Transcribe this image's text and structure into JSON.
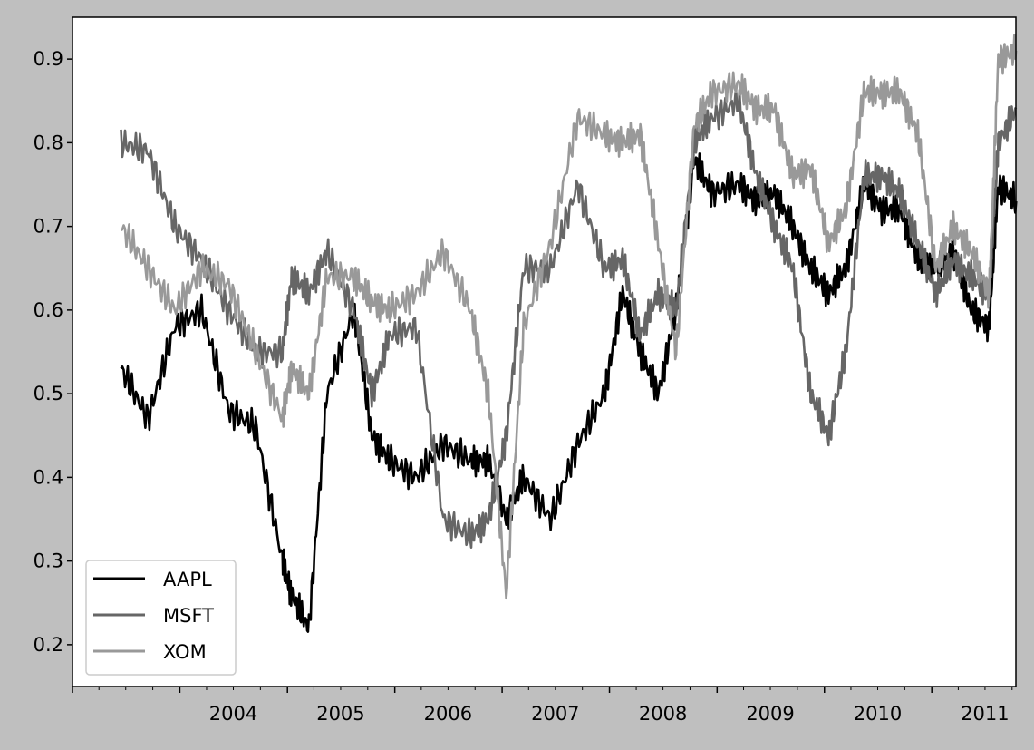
{
  "figure": {
    "background": "#bfbfbf",
    "plot_background": "#ffffff"
  },
  "chart_data": {
    "type": "line",
    "title": "",
    "xlabel": "",
    "ylabel": "",
    "x_tick_labels": [
      "2004",
      "2005",
      "2006",
      "2007",
      "2008",
      "2009",
      "2010",
      "2011"
    ],
    "xlim": [
      "2003-01-01",
      "2011-10-14"
    ],
    "ylim": [
      0.15,
      0.95
    ],
    "y_ticks": [
      0.2,
      0.3,
      0.4,
      0.5,
      0.6,
      0.7,
      0.8,
      0.9
    ],
    "y_tick_labels": [
      "0.2",
      "0.3",
      "0.4",
      "0.5",
      "0.6",
      "0.7",
      "0.8",
      "0.9"
    ],
    "grid": false,
    "legend_position": "lower-left",
    "x": [
      "2003-06",
      "2003-09",
      "2003-12",
      "2004-03",
      "2004-06",
      "2004-09",
      "2004-12",
      "2005-01",
      "2005-03",
      "2005-05",
      "2005-08",
      "2005-10",
      "2005-12",
      "2006-03",
      "2006-06",
      "2006-09",
      "2006-11",
      "2007-01",
      "2007-03",
      "2007-06",
      "2007-09",
      "2007-12",
      "2008-02",
      "2008-04",
      "2008-06",
      "2008-08",
      "2008-10",
      "2008-12",
      "2009-03",
      "2009-05",
      "2009-07",
      "2009-09",
      "2009-11",
      "2010-01",
      "2010-03",
      "2010-05",
      "2010-07",
      "2010-09",
      "2010-11",
      "2011-01",
      "2011-03",
      "2011-05",
      "2011-07",
      "2011-08",
      "2011-10"
    ],
    "series": [
      {
        "name": "AAPL",
        "color": "#000000",
        "values": [
          0.53,
          0.47,
          0.58,
          0.6,
          0.48,
          0.46,
          0.3,
          0.26,
          0.22,
          0.5,
          0.6,
          0.45,
          0.42,
          0.4,
          0.44,
          0.42,
          0.42,
          0.35,
          0.4,
          0.35,
          0.44,
          0.5,
          0.62,
          0.55,
          0.5,
          0.6,
          0.78,
          0.74,
          0.75,
          0.73,
          0.74,
          0.7,
          0.65,
          0.62,
          0.65,
          0.75,
          0.72,
          0.72,
          0.66,
          0.65,
          0.67,
          0.6,
          0.58,
          0.75,
          0.73
        ]
      },
      {
        "name": "MSFT",
        "color": "#666666",
        "values": [
          0.8,
          0.79,
          0.7,
          0.66,
          0.6,
          0.55,
          0.55,
          0.64,
          0.62,
          0.67,
          0.6,
          0.5,
          0.57,
          0.58,
          0.35,
          0.33,
          0.35,
          0.45,
          0.65,
          0.65,
          0.75,
          0.65,
          0.66,
          0.57,
          0.62,
          0.6,
          0.8,
          0.83,
          0.85,
          0.76,
          0.7,
          0.65,
          0.5,
          0.45,
          0.55,
          0.76,
          0.76,
          0.74,
          0.68,
          0.62,
          0.66,
          0.64,
          0.62,
          0.8,
          0.84
        ]
      },
      {
        "name": "XOM",
        "color": "#999999",
        "values": [
          0.7,
          0.65,
          0.6,
          0.65,
          0.63,
          0.55,
          0.47,
          0.53,
          0.5,
          0.64,
          0.64,
          0.61,
          0.6,
          0.62,
          0.67,
          0.6,
          0.5,
          0.26,
          0.58,
          0.68,
          0.83,
          0.81,
          0.8,
          0.81,
          0.68,
          0.55,
          0.82,
          0.86,
          0.87,
          0.84,
          0.84,
          0.76,
          0.77,
          0.68,
          0.72,
          0.86,
          0.86,
          0.86,
          0.81,
          0.65,
          0.7,
          0.67,
          0.62,
          0.9,
          0.91
        ]
      }
    ]
  }
}
